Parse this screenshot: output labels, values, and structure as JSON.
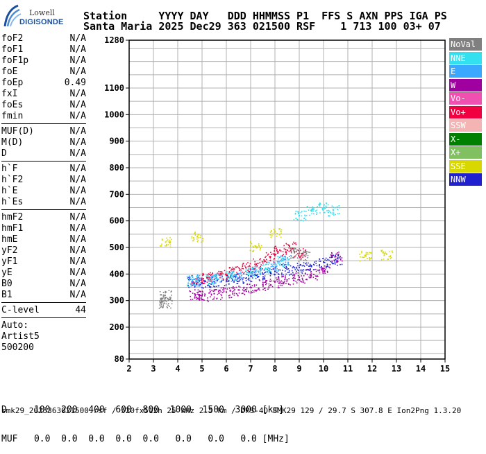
{
  "logo": {
    "line1": "Lowell",
    "line2": "DIGISONDE"
  },
  "header": {
    "line1": "Station     YYYY DAY   DDD HHMMSS P1  FFS S AXN PPS IGA PS",
    "line2": "Santa Maria 2025 Dec29 363 021500 RSF    1 713 100 03+ 07"
  },
  "params": {
    "group1": [
      {
        "name": "foF2",
        "value": "N/A"
      },
      {
        "name": "foF1",
        "value": "N/A"
      },
      {
        "name": "foF1p",
        "value": "N/A"
      },
      {
        "name": "foE",
        "value": "N/A"
      },
      {
        "name": "foEp",
        "value": "0.49"
      },
      {
        "name": "fxI",
        "value": "N/A"
      },
      {
        "name": "foEs",
        "value": "N/A"
      },
      {
        "name": "fmin",
        "value": "N/A"
      }
    ],
    "group2": [
      {
        "name": "MUF(D)",
        "value": "N/A"
      },
      {
        "name": "M(D)",
        "value": "N/A"
      },
      {
        "name": "D",
        "value": "N/A"
      }
    ],
    "group3": [
      {
        "name": "h`F",
        "value": "N/A"
      },
      {
        "name": "h`F2",
        "value": "N/A"
      },
      {
        "name": "h`E",
        "value": "N/A"
      },
      {
        "name": "h`Es",
        "value": "N/A"
      }
    ],
    "group4": [
      {
        "name": "hmF2",
        "value": "N/A"
      },
      {
        "name": "hmF1",
        "value": "N/A"
      },
      {
        "name": "hmE",
        "value": "N/A"
      },
      {
        "name": "yF2",
        "value": "N/A"
      },
      {
        "name": "yF1",
        "value": "N/A"
      },
      {
        "name": "yE",
        "value": "N/A"
      },
      {
        "name": "B0",
        "value": "N/A"
      },
      {
        "name": "B1",
        "value": "N/A"
      }
    ],
    "clevel": {
      "name": "C-level",
      "value": "44"
    },
    "auto": [
      "Auto:",
      "Artist5",
      "500200"
    ]
  },
  "legend": [
    {
      "label": "NoVal",
      "color": "#808080"
    },
    {
      "label": "NNE",
      "color": "#33e0f0"
    },
    {
      "label": "E",
      "color": "#3aa8ff"
    },
    {
      "label": "W",
      "color": "#a000a0"
    },
    {
      "label": "Vo-",
      "color": "#f050b0"
    },
    {
      "label": "Vo+",
      "color": "#f00040"
    },
    {
      "label": "SSW",
      "color": "#f4b4b4"
    },
    {
      "label": "X-",
      "color": "#008000"
    },
    {
      "label": "X+",
      "color": "#80c060"
    },
    {
      "label": "SSE",
      "color": "#d8d800"
    },
    {
      "label": "NNW",
      "color": "#2020d0"
    }
  ],
  "bottom": {
    "line1": "D     100  200  400  600  800  1000  1500  3000 [km]",
    "line2": "MUF   0.0  0.0  0.0  0.0  0.0   0.0   0.0   0.0 [MHz]"
  },
  "footer": "smk29_2025363021500.rsf / 520fx512h 25 kHz 2.5 km / DPS-4D SMK29 129 / 29.7 S 307.8 E Ion2Png 1.3.20",
  "chart_data": {
    "type": "scatter",
    "xlabel": "",
    "ylabel": "",
    "xlim": [
      2,
      15
    ],
    "ylim": [
      80,
      1280
    ],
    "x_ticks": [
      2,
      3,
      4,
      5,
      6,
      7,
      8,
      9,
      10,
      11,
      12,
      13,
      14,
      15
    ],
    "y_ticks": [
      80,
      200,
      300,
      400,
      500,
      600,
      700,
      800,
      900,
      1000,
      1100,
      1280
    ],
    "grid": true,
    "series": [
      {
        "name": "NNW",
        "color": "#2020d0",
        "points": [
          [
            4.6,
            370
          ],
          [
            5.0,
            368
          ],
          [
            5.5,
            372
          ],
          [
            6.0,
            378
          ],
          [
            6.5,
            385
          ],
          [
            7.0,
            392
          ],
          [
            7.5,
            400
          ],
          [
            8.0,
            410
          ],
          [
            8.5,
            418
          ],
          [
            9.0,
            425
          ],
          [
            9.5,
            432
          ],
          [
            10.0,
            445
          ],
          [
            10.5,
            455
          ]
        ]
      },
      {
        "name": "W",
        "color": "#a000a0",
        "points": [
          [
            4.7,
            325
          ],
          [
            5.0,
            318
          ],
          [
            5.5,
            326
          ],
          [
            6.0,
            332
          ],
          [
            6.5,
            340
          ],
          [
            7.0,
            350
          ],
          [
            7.5,
            360
          ],
          [
            8.0,
            370
          ],
          [
            8.5,
            378
          ],
          [
            9.0,
            388
          ],
          [
            9.5,
            400
          ],
          [
            10.0,
            420
          ],
          [
            10.5,
            465
          ]
        ]
      },
      {
        "name": "Vo+",
        "color": "#f00040",
        "points": [
          [
            4.8,
            385
          ],
          [
            5.2,
            388
          ],
          [
            5.8,
            400
          ],
          [
            6.3,
            410
          ],
          [
            6.8,
            425
          ],
          [
            7.3,
            440
          ],
          [
            7.8,
            465
          ],
          [
            8.2,
            490
          ],
          [
            8.6,
            505
          ],
          [
            9.0,
            478
          ]
        ]
      },
      {
        "name": "NNE",
        "color": "#33e0f0",
        "points": [
          [
            4.6,
            375
          ],
          [
            5.4,
            382
          ],
          [
            6.2,
            392
          ],
          [
            7.0,
            405
          ],
          [
            7.6,
            420
          ],
          [
            8.3,
            450
          ],
          [
            9.0,
            620
          ],
          [
            9.5,
            640
          ],
          [
            10.0,
            650
          ],
          [
            10.4,
            640
          ]
        ]
      },
      {
        "name": "E",
        "color": "#3aa8ff",
        "points": [
          [
            4.7,
            380
          ],
          [
            5.6,
            386
          ],
          [
            6.4,
            396
          ],
          [
            7.2,
            410
          ],
          [
            7.9,
            430
          ],
          [
            8.4,
            455
          ]
        ]
      },
      {
        "name": "SSE",
        "color": "#d8d800",
        "points": [
          [
            4.8,
            540
          ],
          [
            7.2,
            505
          ],
          [
            8.0,
            560
          ],
          [
            11.7,
            470
          ],
          [
            12.6,
            475
          ],
          [
            3.5,
            520
          ]
        ]
      },
      {
        "name": "NoVal",
        "color": "#808080",
        "points": [
          [
            3.45,
            290
          ],
          [
            3.5,
            300
          ],
          [
            3.48,
            320
          ],
          [
            8.8,
            480
          ],
          [
            9.2,
            470
          ]
        ]
      }
    ]
  }
}
